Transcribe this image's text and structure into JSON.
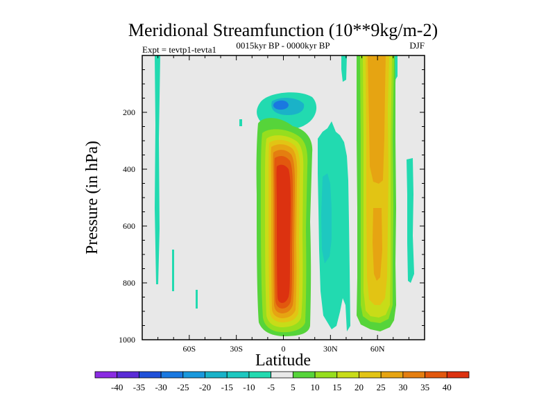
{
  "chart_data": {
    "type": "heatmap",
    "title": "Meridional Streamfunction (10**9kg/m-2)",
    "subtitle": "0015kyr BP - 0000kyr BP",
    "left_annotation": "Expt = tevtp1-tevta1",
    "right_annotation": "DJF",
    "xlabel": "Latitude",
    "ylabel": "Pressure (in hPa)",
    "xlim": [
      -90,
      90
    ],
    "ylim": [
      1000,
      0
    ],
    "x_ticks": [
      {
        "value": -60,
        "label": "60S"
      },
      {
        "value": -30,
        "label": "30S"
      },
      {
        "value": 0,
        "label": "0"
      },
      {
        "value": 30,
        "label": "30N"
      },
      {
        "value": 60,
        "label": "60N"
      }
    ],
    "y_ticks": [
      {
        "value": 200,
        "label": "200"
      },
      {
        "value": 400,
        "label": "400"
      },
      {
        "value": 600,
        "label": "600"
      },
      {
        "value": 800,
        "label": "800"
      },
      {
        "value": 1000,
        "label": "1000"
      }
    ],
    "colorbar": {
      "boundaries": [
        "-40",
        "-35",
        "-30",
        "-25",
        "-20",
        "-15",
        "-10",
        "-5",
        "5",
        "10",
        "15",
        "20",
        "25",
        "30",
        "35",
        "40"
      ],
      "colors": [
        "#8a2be2",
        "#5a2cd6",
        "#1f50d8",
        "#1a78e0",
        "#1a98dc",
        "#1ab2c8",
        "#1ec8c0",
        "#22dab0",
        "#e8e8e8",
        "#56d43a",
        "#96de1e",
        "#c8dc18",
        "#e2c414",
        "#e6a412",
        "#e47e10",
        "#e2580e",
        "#dc3210"
      ]
    },
    "features": [
      {
        "name": "central-positive-cell",
        "lat_range": [
          -12,
          14
        ],
        "p_range": [
          270,
          1000
        ],
        "peak_value": 40
      },
      {
        "name": "upper-negative-cell",
        "lat_range": [
          -5,
          10
        ],
        "p_range": [
          140,
          230
        ],
        "peak_value": -20
      },
      {
        "name": "ne-negative-band",
        "lat_range": [
          16,
          33
        ],
        "p_range": [
          260,
          900
        ],
        "peak_value": -10
      },
      {
        "name": "north-positive-band",
        "lat_range": [
          48,
          70
        ],
        "p_range": [
          0,
          970
        ],
        "peak_value": 25
      },
      {
        "name": "sh-weak-negative-streaks",
        "lat_range": [
          -82,
          -68
        ],
        "p_range": [
          0,
          900
        ],
        "peak_value": -5
      }
    ]
  }
}
